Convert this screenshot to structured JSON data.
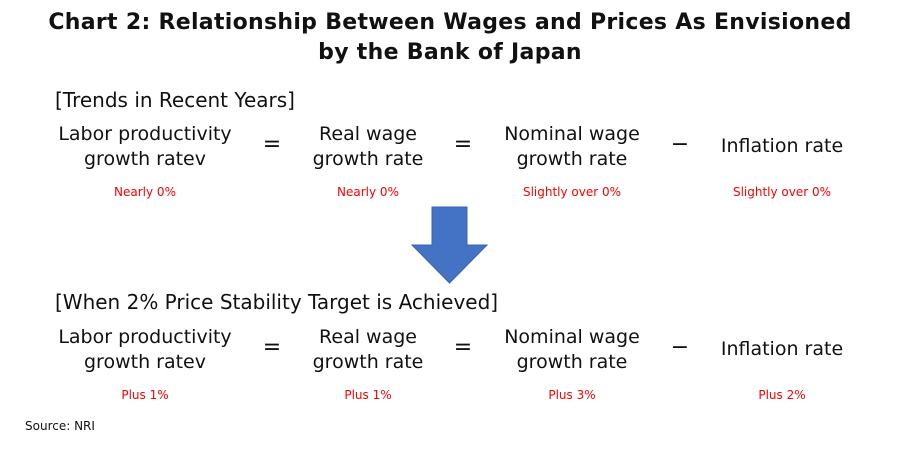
{
  "title_line1": "Chart 2: Relationship Between Wages and Prices As Envisioned",
  "title_line2": "by the Bank of Japan",
  "sections": [
    {
      "heading": "[Trends in Recent Years]",
      "terms": [
        {
          "l1": "Labor productivity",
          "l2": "growth ratev"
        },
        {
          "l1": "Real wage",
          "l2": "growth rate"
        },
        {
          "l1": "Nominal wage",
          "l2": "growth rate"
        },
        {
          "l1": "Inflation rate",
          "l2": ""
        }
      ],
      "operators": [
        "=",
        "=",
        "−"
      ],
      "values": [
        "Nearly 0%",
        "Nearly 0%",
        "Slightly over 0%",
        "Slightly over 0%"
      ]
    },
    {
      "heading": "[When 2% Price Stability Target is Achieved]",
      "terms": [
        {
          "l1": "Labor productivity",
          "l2": "growth ratev"
        },
        {
          "l1": "Real wage",
          "l2": "growth rate"
        },
        {
          "l1": "Nominal wage",
          "l2": "growth rate"
        },
        {
          "l1": "Inflation rate",
          "l2": ""
        }
      ],
      "operators": [
        "=",
        "=",
        "−"
      ],
      "values": [
        "Plus 1%",
        "Plus 1%",
        "Plus 3%",
        "Plus 2%"
      ]
    }
  ],
  "arrow_color": "#4472C4",
  "value_color": "#FF0000",
  "source": "Source: NRI"
}
